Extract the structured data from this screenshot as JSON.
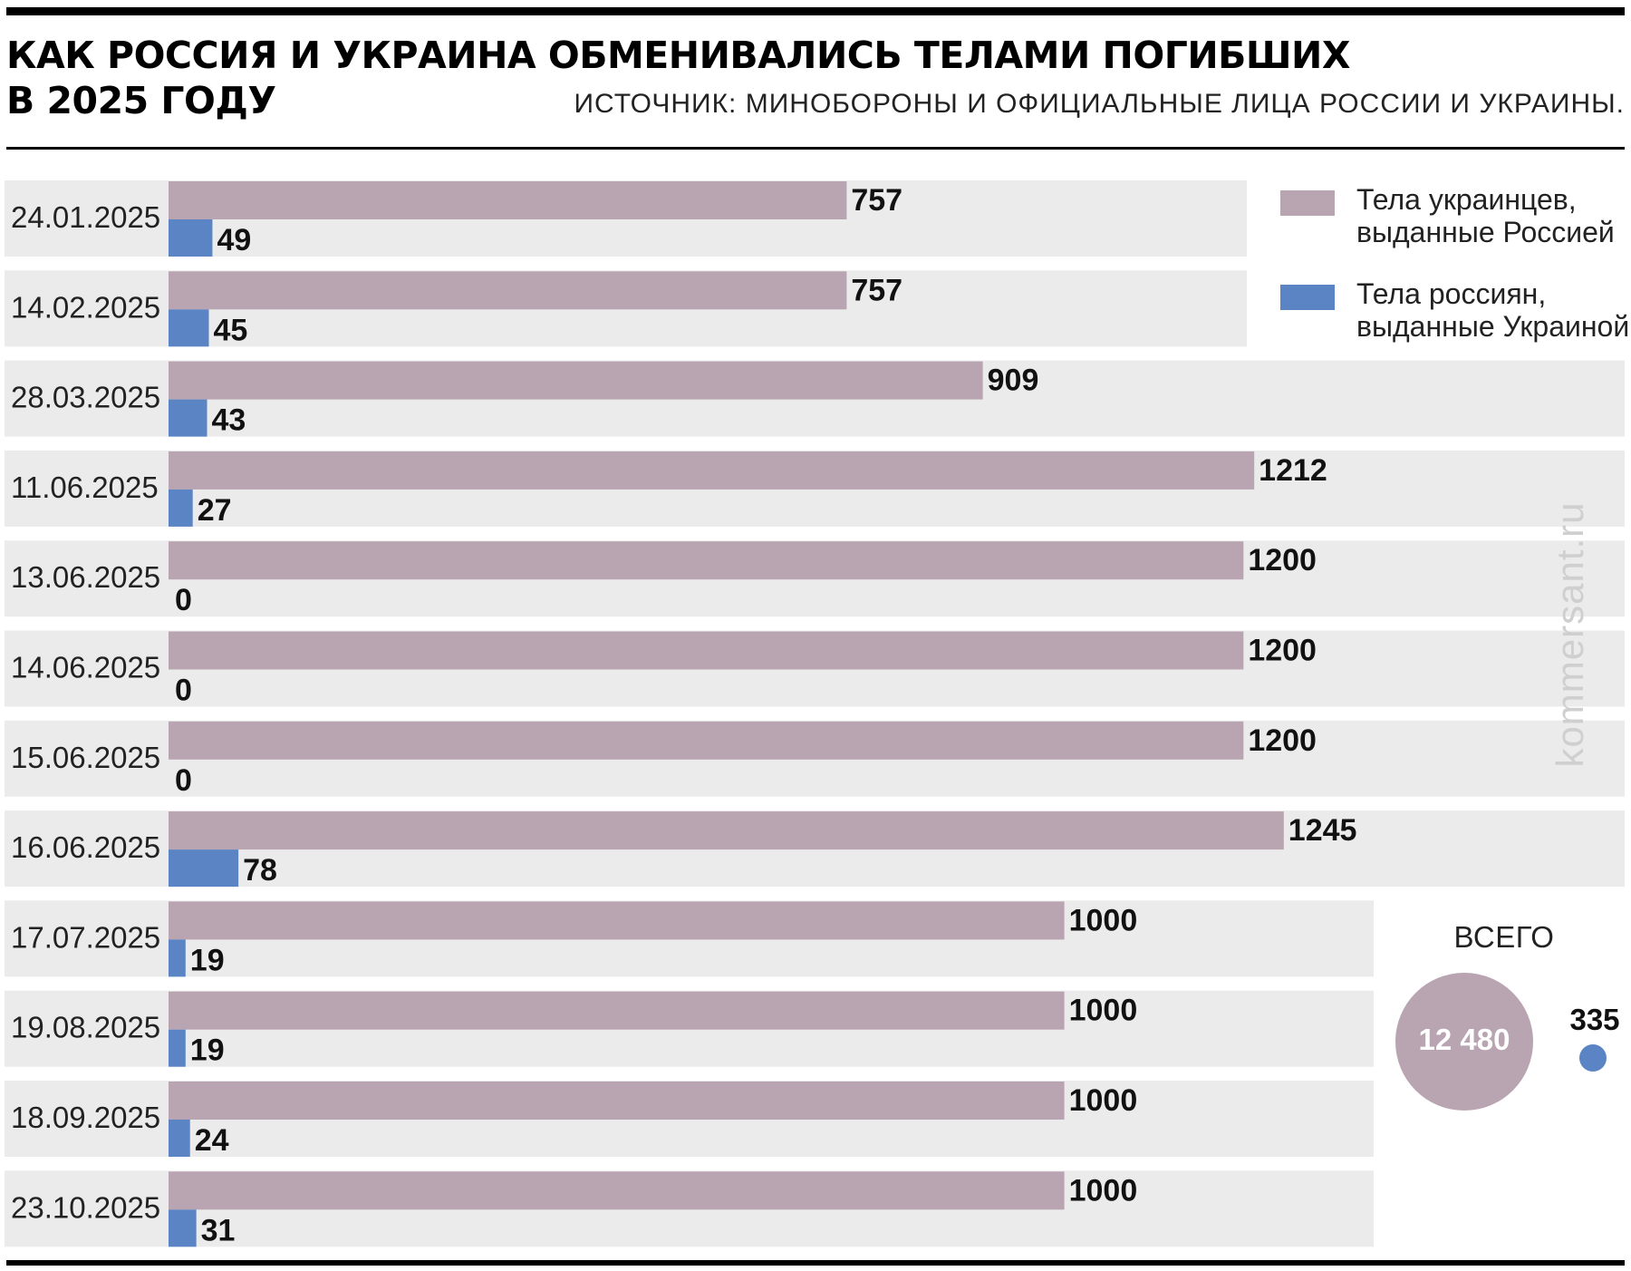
{
  "title": {
    "line1": "КАК РОССИЯ И УКРАИНА ОБМЕНИВАЛИСЬ ТЕЛАМИ ПОГИБШИХ",
    "line2": "В 2025 ГОДУ"
  },
  "source": "ИСТОЧНИК: МИНОБОРОНЫ И ОФИЦИАЛЬНЫЕ ЛИЦА РОССИИ И УКРАИНЫ.",
  "legend": {
    "ua": {
      "line1": "Тела украинцев,",
      "line2": "выданные Россией",
      "color": "#b9a4b1"
    },
    "ru": {
      "line1": "Тела россиян,",
      "line2": "выданные Украиной",
      "color": "#5b84c4"
    }
  },
  "totals": {
    "title": "ВСЕГО",
    "ua_label": "12 480",
    "ru_label": "335"
  },
  "watermark": "kommersant.ru",
  "chart_data": {
    "type": "bar",
    "orientation": "horizontal",
    "categories": [
      "24.01.2025",
      "14.02.2025",
      "28.03.2025",
      "11.06.2025",
      "13.06.2025",
      "14.06.2025",
      "15.06.2025",
      "16.06.2025",
      "17.07.2025",
      "19.08.2025",
      "18.09.2025",
      "23.10.2025"
    ],
    "series": [
      {
        "name": "Тела украинцев, выданные Россией",
        "color": "#b9a4b1",
        "values": [
          757,
          757,
          909,
          1212,
          1200,
          1200,
          1200,
          1245,
          1000,
          1000,
          1000,
          1000
        ]
      },
      {
        "name": "Тела россиян, выданные Украиной",
        "color": "#5b84c4",
        "values": [
          49,
          45,
          43,
          27,
          0,
          0,
          0,
          78,
          19,
          19,
          24,
          31
        ]
      }
    ],
    "totals": {
      "ua": 12480,
      "ru": 335
    },
    "xlim": [
      0,
      1245
    ],
    "grid": false,
    "legend_position": "top-right",
    "colors": {
      "row_background": "#ebebeb"
    }
  }
}
